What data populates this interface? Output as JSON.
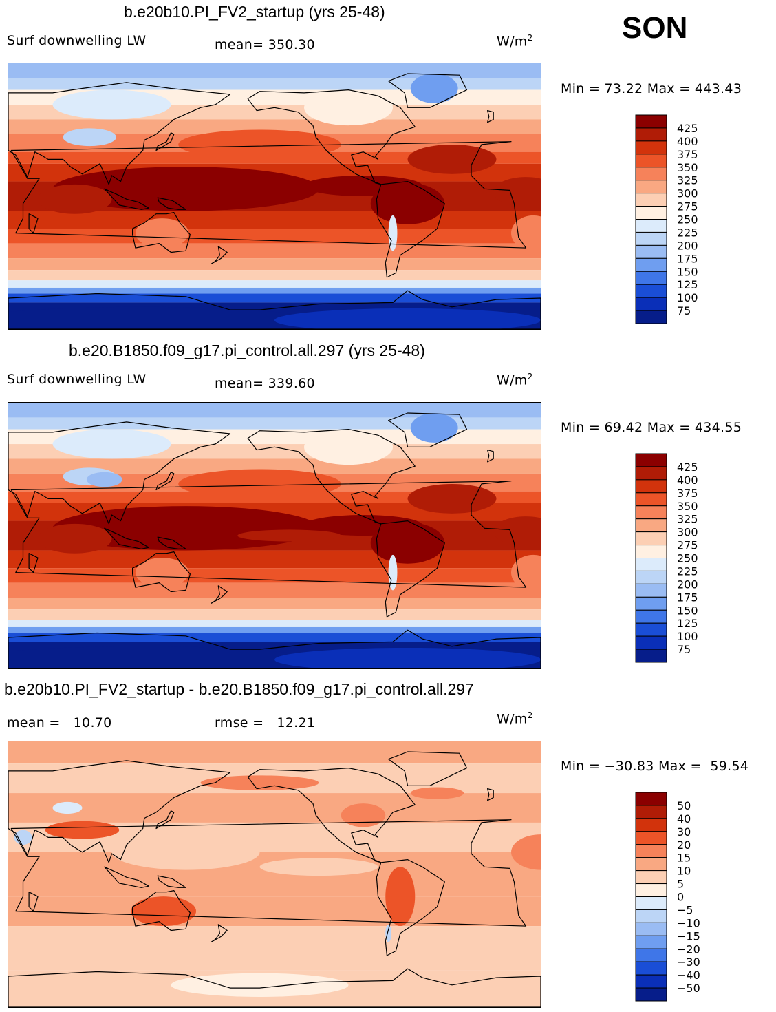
{
  "season": "SON",
  "panels": [
    {
      "title": "b.e20b10.PI_FV2_startup (yrs 25-48)",
      "left_label": "Surf downwelling LW",
      "stat_label": "mean=",
      "stat_value": "350.30",
      "units_prefix": "W/m",
      "units_sup": "2",
      "minmax": "Min =  73.22 Max = 443.43"
    },
    {
      "title": "b.e20.B1850.f09_g17.pi_control.all.297 (yrs 25-48)",
      "left_label": "Surf downwelling LW",
      "stat_label": "mean=",
      "stat_value": "339.60",
      "units_prefix": "W/m",
      "units_sup": "2",
      "minmax": "Min =  69.42 Max = 434.55"
    },
    {
      "title": "b.e20b10.PI_FV2_startup - b.e20.B1850.f09_g17.pi_control.all.297",
      "left_label": "mean =   10.70",
      "stat_label": "rmse =",
      "stat_value": "12.21",
      "units_prefix": "W/m",
      "units_sup": "2",
      "minmax": "Min = −30.83 Max =  59.54"
    }
  ],
  "chart_data": [
    {
      "type": "heatmap",
      "title": "b.e20b10.PI_FV2_startup (yrs 25-48)",
      "variable": "Surf downwelling LW",
      "units": "W/m2",
      "mean": 350.3,
      "min": 73.22,
      "max": 443.43,
      "colorbar_levels": [
        425,
        400,
        375,
        350,
        325,
        300,
        275,
        250,
        225,
        200,
        175,
        150,
        125,
        100,
        75
      ],
      "colorbar_colors": [
        "#8b0000",
        "#b01c06",
        "#d2330c",
        "#ec5428",
        "#f6825a",
        "#f9a882",
        "#fccfb4",
        "#fff0e2",
        "#dcebfb",
        "#bcd5f6",
        "#9abcf3",
        "#6f9ef0",
        "#3f76e8",
        "#1a4ed6",
        "#0a2fb8",
        "#061d8a"
      ]
    },
    {
      "type": "heatmap",
      "title": "b.e20.B1850.f09_g17.pi_control.all.297 (yrs 25-48)",
      "variable": "Surf downwelling LW",
      "units": "W/m2",
      "mean": 339.6,
      "min": 69.42,
      "max": 434.55,
      "colorbar_levels": [
        425,
        400,
        375,
        350,
        325,
        300,
        275,
        250,
        225,
        200,
        175,
        150,
        125,
        100,
        75
      ],
      "colorbar_colors": [
        "#8b0000",
        "#b01c06",
        "#d2330c",
        "#ec5428",
        "#f6825a",
        "#f9a882",
        "#fccfb4",
        "#fff0e2",
        "#dcebfb",
        "#bcd5f6",
        "#9abcf3",
        "#6f9ef0",
        "#3f76e8",
        "#1a4ed6",
        "#0a2fb8",
        "#061d8a"
      ]
    },
    {
      "type": "heatmap",
      "title": "b.e20b10.PI_FV2_startup - b.e20.B1850.f09_g17.pi_control.all.297",
      "units": "W/m2",
      "mean": 10.7,
      "rmse": 12.21,
      "min": -30.83,
      "max": 59.54,
      "colorbar_levels": [
        50,
        40,
        30,
        20,
        15,
        10,
        5,
        0,
        -5,
        -10,
        -15,
        -20,
        -30,
        -40,
        -50
      ],
      "colorbar_labels": [
        "50",
        "40",
        "30",
        "20",
        "15",
        "10",
        "5",
        "0",
        "−5",
        "−10",
        "−15",
        "−20",
        "−30",
        "−40",
        "−50"
      ],
      "colorbar_colors": [
        "#8b0000",
        "#b01c06",
        "#d2330c",
        "#ec5428",
        "#f6825a",
        "#f9a882",
        "#fccfb4",
        "#fff0e2",
        "#dcebfb",
        "#bcd5f6",
        "#9abcf3",
        "#6f9ef0",
        "#3f76e8",
        "#1a4ed6",
        "#0a2fb8",
        "#061d8a"
      ]
    }
  ]
}
